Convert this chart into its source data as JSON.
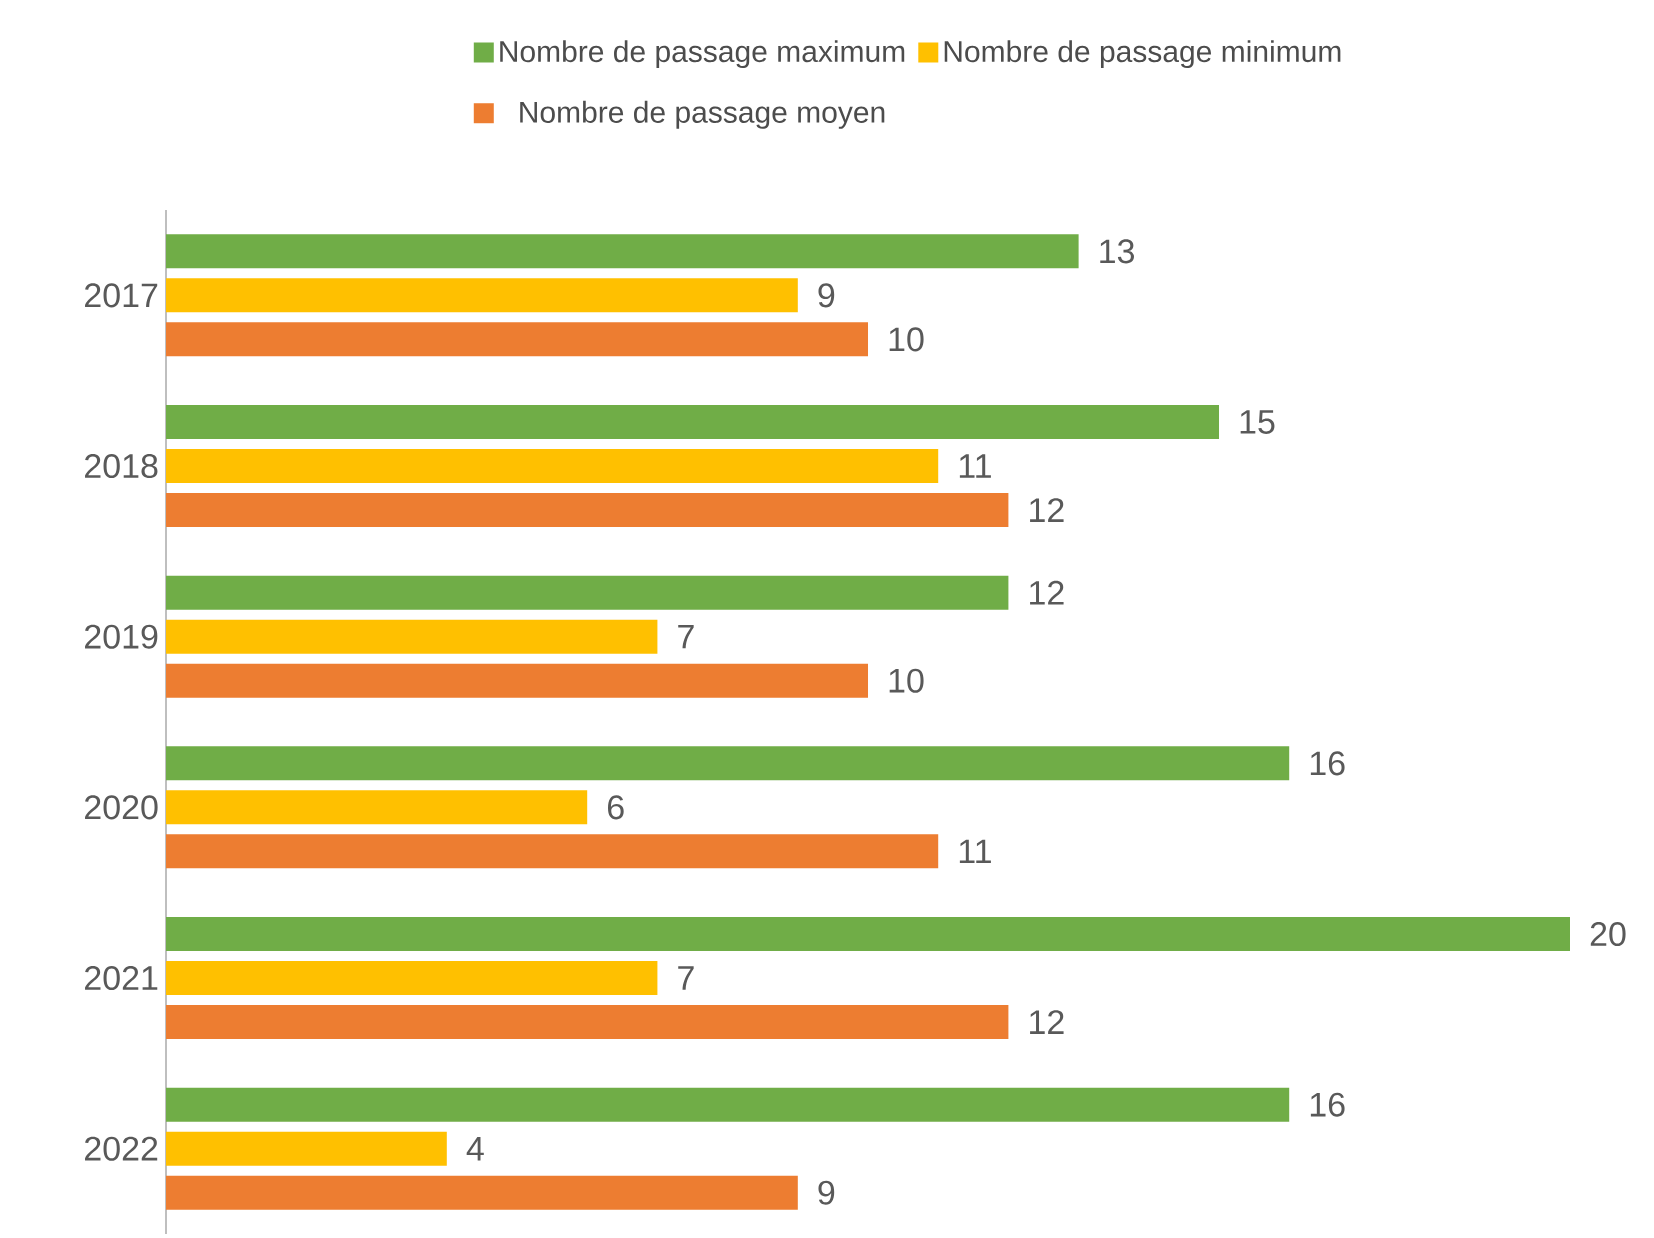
{
  "chart_data": {
    "type": "bar",
    "orientation": "horizontal",
    "categories": [
      "2017",
      "2018",
      "2019",
      "2020",
      "2021",
      "2022"
    ],
    "series": [
      {
        "name": "Nombre de passage maximum",
        "color": "#70ad47",
        "values": [
          13,
          15,
          12,
          16,
          20,
          16
        ]
      },
      {
        "name": "Nombre de passage minimum",
        "color": "#ffc000",
        "values": [
          9,
          11,
          7,
          6,
          7,
          4
        ]
      },
      {
        "name": "Nombre de passage moyen",
        "color": "#ed7d31",
        "values": [
          10,
          12,
          10,
          11,
          12,
          9
        ]
      }
    ],
    "xlim": [
      0,
      20
    ],
    "data_labels": true,
    "legend": "top",
    "tick_labels": "y",
    "grid": false
  }
}
